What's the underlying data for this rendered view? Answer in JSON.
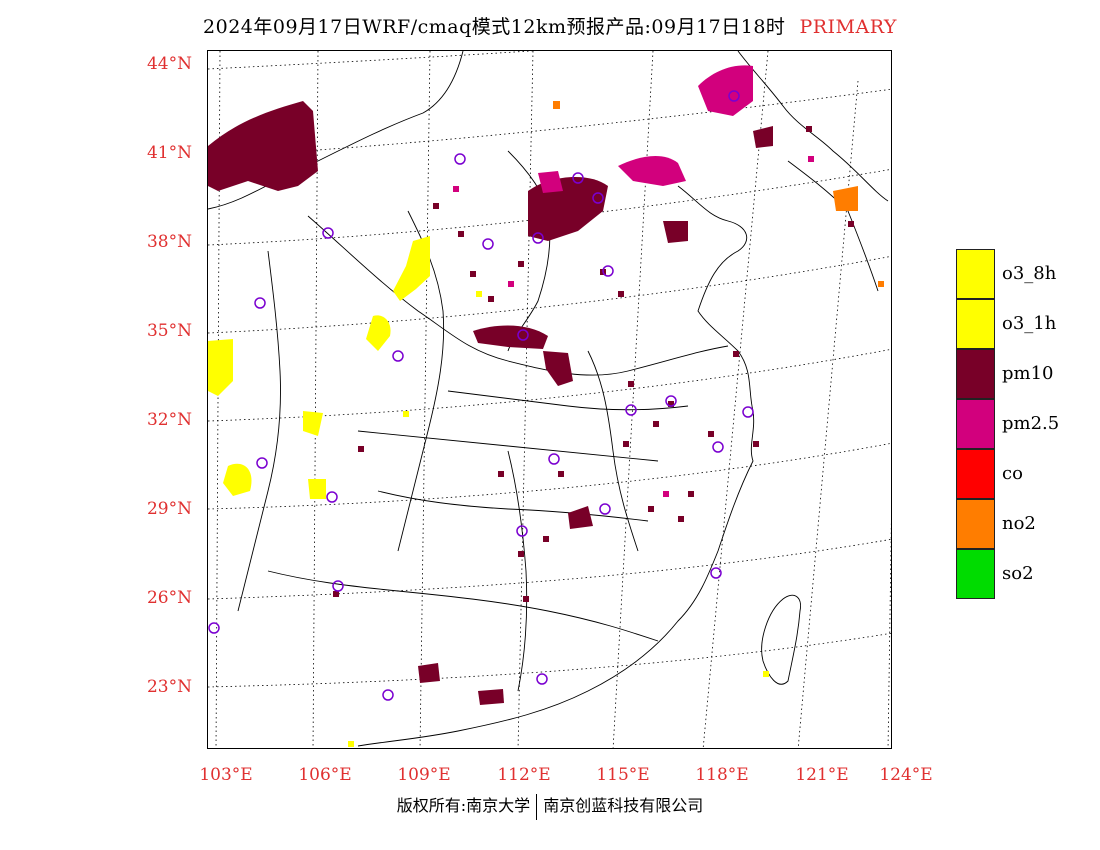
{
  "title": {
    "main": "2024年09月17日WRF/cmaq模式12km预报产品:09月17日18时",
    "tag": "PRIMARY"
  },
  "map": {
    "lat_labels": [
      "44°N",
      "41°N",
      "38°N",
      "35°N",
      "32°N",
      "29°N",
      "26°N",
      "23°N"
    ],
    "lon_labels": [
      "103°E",
      "106°E",
      "109°E",
      "112°E",
      "115°E",
      "118°E",
      "121°E",
      "124°E"
    ],
    "colors": {
      "o3_8h": "#ffff00",
      "o3_1h": "#ffff00",
      "pm10": "#780028",
      "pm2_5": "#d2007d",
      "co": "#ff0000",
      "no2": "#ff7d00",
      "so2": "#00dc00",
      "station": "#7a00d0",
      "graticule": "#000000"
    }
  },
  "legend": {
    "items": [
      {
        "label": "o3_8h",
        "color": "#ffff00"
      },
      {
        "label": "o3_1h",
        "color": "#ffff00"
      },
      {
        "label": "pm10",
        "color": "#780028"
      },
      {
        "label": "pm2.5",
        "color": "#d2007d"
      },
      {
        "label": "co",
        "color": "#ff0000"
      },
      {
        "label": "no2",
        "color": "#ff7d00"
      },
      {
        "label": "so2",
        "color": "#00dc00"
      }
    ]
  },
  "footer": {
    "left": "版权所有:南京大学",
    "right": "南京创蓝科技有限公司"
  }
}
